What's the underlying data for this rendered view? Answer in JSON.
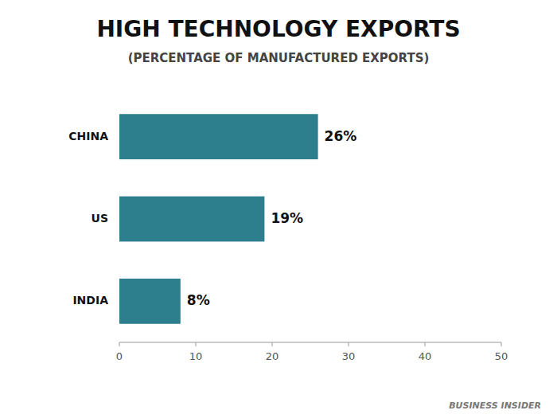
{
  "chart_data": {
    "type": "bar",
    "orientation": "horizontal",
    "title": "HIGH TECHNOLOGY EXPORTS",
    "subtitle": "(PERCENTAGE OF MANUFACTURED EXPORTS)",
    "categories": [
      "CHINA",
      "US",
      "INDIA"
    ],
    "values": [
      26,
      19,
      8
    ],
    "value_labels": [
      "26%",
      "19%",
      "8%"
    ],
    "data_labels": true,
    "color": "#2e7f8e",
    "xlim": [
      0,
      50
    ],
    "xticks": [
      0,
      10,
      20,
      30,
      40,
      50
    ],
    "grid": false,
    "annotations": [
      "BUSINESS INSIDER"
    ]
  }
}
